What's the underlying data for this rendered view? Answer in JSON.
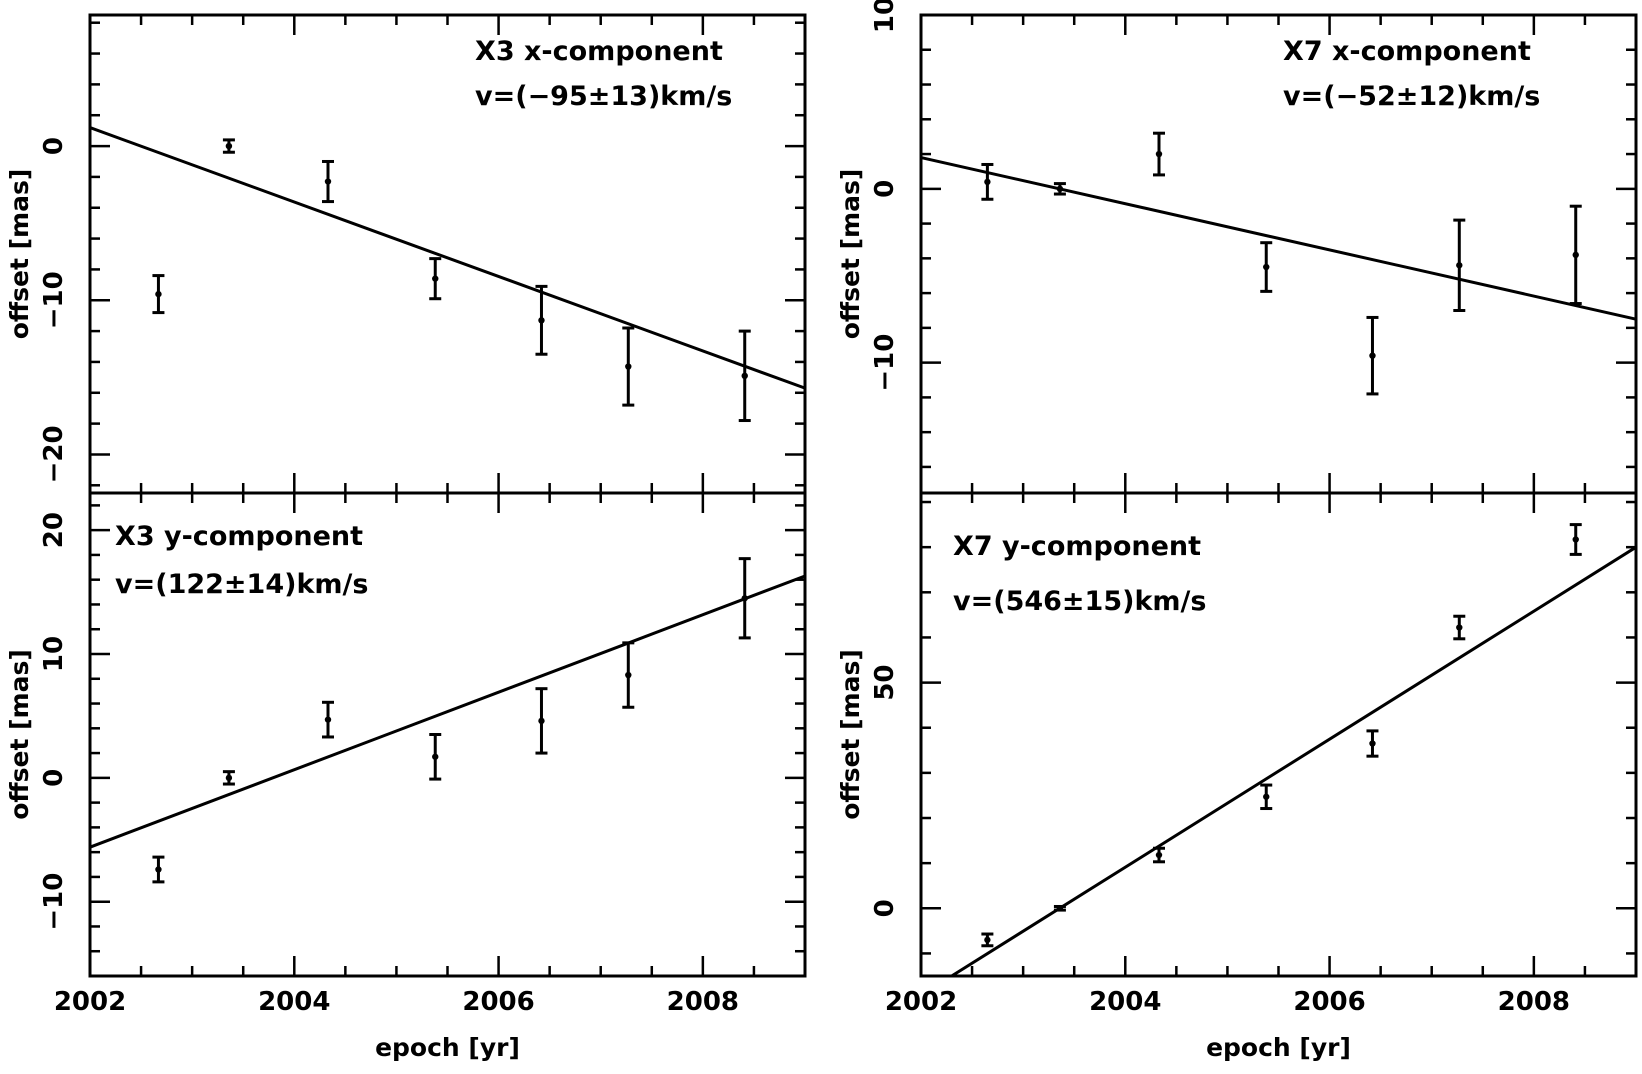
{
  "figure": {
    "xlabel": "epoch [yr]",
    "ylabel": "offset [mas]"
  },
  "chart_data": [
    {
      "id": "x3x",
      "type": "scatter",
      "title": "X3 x-component",
      "annotation": "v=(−95±13)km/s",
      "xlabel": "",
      "ylabel": "offset [mas]",
      "xlim": [
        2002,
        2009
      ],
      "ylim": [
        -22.5,
        8.5
      ],
      "xticks": [
        2002,
        2004,
        2006,
        2008
      ],
      "yticks": [
        -20,
        -10,
        0
      ],
      "ytick_labels": [
        "−20",
        "−10",
        "0"
      ],
      "points": [
        {
          "x": 2002.67,
          "y": -9.6,
          "err": 1.2
        },
        {
          "x": 2003.36,
          "y": 0.0,
          "err": 0.4
        },
        {
          "x": 2004.33,
          "y": -2.3,
          "err": 1.3
        },
        {
          "x": 2005.38,
          "y": -8.6,
          "err": 1.3
        },
        {
          "x": 2006.42,
          "y": -11.3,
          "err": 2.2
        },
        {
          "x": 2007.27,
          "y": -14.3,
          "err": 2.5
        },
        {
          "x": 2008.41,
          "y": -14.9,
          "err": 2.9
        }
      ],
      "fit": {
        "x0": 2002.0,
        "y0": 1.2,
        "x1": 2009.0,
        "y1": -15.7
      }
    },
    {
      "id": "x7x",
      "type": "scatter",
      "title": "X7 x-component",
      "annotation": "v=(−52±12)km/s",
      "xlabel": "",
      "ylabel": "offset [mas]",
      "xlim": [
        2002,
        2009
      ],
      "ylim": [
        -17.5,
        10
      ],
      "xticks": [
        2002,
        2004,
        2006,
        2008
      ],
      "yticks": [
        -10,
        0,
        10
      ],
      "ytick_labels": [
        "−10",
        "0",
        "10"
      ],
      "points": [
        {
          "x": 2002.65,
          "y": 0.4,
          "err": 1.0
        },
        {
          "x": 2003.36,
          "y": 0.0,
          "err": 0.3
        },
        {
          "x": 2004.33,
          "y": 2.0,
          "err": 1.2
        },
        {
          "x": 2005.38,
          "y": -4.5,
          "err": 1.4
        },
        {
          "x": 2006.42,
          "y": -9.6,
          "err": 2.2
        },
        {
          "x": 2007.27,
          "y": -4.4,
          "err": 2.6
        },
        {
          "x": 2008.41,
          "y": -3.8,
          "err": 2.8
        }
      ],
      "fit": {
        "x0": 2002.0,
        "y0": 1.8,
        "x1": 2009.0,
        "y1": -7.5
      }
    },
    {
      "id": "x3y",
      "type": "scatter",
      "title": "X3 y-component",
      "annotation": "v=(122±14)km/s",
      "xlabel": "epoch [yr]",
      "ylabel": "offset [mas]",
      "xlim": [
        2002,
        2009
      ],
      "ylim": [
        -16,
        23
      ],
      "xticks": [
        2002,
        2004,
        2006,
        2008
      ],
      "xtick_labels": [
        "2002",
        "2004",
        "2006",
        "2008"
      ],
      "yticks": [
        -10,
        0,
        10,
        20
      ],
      "ytick_labels": [
        "−10",
        "0",
        "10",
        "20"
      ],
      "points": [
        {
          "x": 2002.67,
          "y": -7.4,
          "err": 1.0
        },
        {
          "x": 2003.36,
          "y": 0.0,
          "err": 0.5
        },
        {
          "x": 2004.33,
          "y": 4.7,
          "err": 1.4
        },
        {
          "x": 2005.38,
          "y": 1.7,
          "err": 1.8
        },
        {
          "x": 2006.42,
          "y": 4.6,
          "err": 2.6
        },
        {
          "x": 2007.27,
          "y": 8.3,
          "err": 2.6
        },
        {
          "x": 2008.41,
          "y": 14.5,
          "err": 3.2
        }
      ],
      "fit": {
        "x0": 2002.0,
        "y0": -5.6,
        "x1": 2009.0,
        "y1": 16.3
      }
    },
    {
      "id": "x7y",
      "type": "scatter",
      "title": "X7 y-component",
      "annotation": "v=(546±15)km/s",
      "xlabel": "epoch [yr]",
      "ylabel": "offset [mas]",
      "xlim": [
        2002,
        2009
      ],
      "ylim": [
        -15,
        92
      ],
      "xticks": [
        2002,
        2004,
        2006,
        2008
      ],
      "xtick_labels": [
        "2002",
        "2004",
        "2006",
        "2008"
      ],
      "yticks": [
        0,
        50
      ],
      "ytick_labels": [
        "0",
        "50"
      ],
      "points": [
        {
          "x": 2002.65,
          "y": -7.0,
          "err": 1.3
        },
        {
          "x": 2003.36,
          "y": 0.0,
          "err": 0.4
        },
        {
          "x": 2004.33,
          "y": 11.8,
          "err": 1.5
        },
        {
          "x": 2005.38,
          "y": 24.7,
          "err": 2.6
        },
        {
          "x": 2006.42,
          "y": 36.5,
          "err": 2.8
        },
        {
          "x": 2007.27,
          "y": 62.2,
          "err": 2.5
        },
        {
          "x": 2008.41,
          "y": 81.7,
          "err": 3.3
        }
      ],
      "fit": {
        "x0": 2002.3,
        "y0": -15.0,
        "x1": 2009.0,
        "y1": 80.0
      }
    }
  ]
}
